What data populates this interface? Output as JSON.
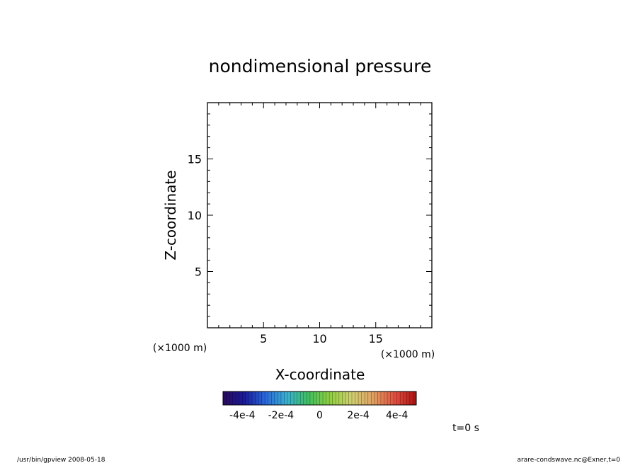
{
  "chart_data": {
    "type": "heatmap",
    "title": "nondimensional pressure",
    "xlabel": "X-coordinate",
    "ylabel": "Z-coordinate",
    "x_unit_label": "(×1000 m)",
    "y_unit_label": "(×1000 m)",
    "xlim": [
      0,
      20
    ],
    "ylim": [
      0,
      20
    ],
    "x_major_ticks": [
      5,
      10,
      15
    ],
    "y_major_ticks": [
      5,
      10,
      15
    ],
    "x_major_tick_labels": [
      "5",
      "10",
      "15"
    ],
    "y_major_tick_labels": [
      "5",
      "10",
      "15"
    ],
    "minor_tick_step": 1,
    "grid": false,
    "field_values": [],
    "colorbar": {
      "min": -0.0005,
      "max": 0.0005,
      "tick_values": [
        -0.0004,
        -0.0002,
        0,
        0.0002,
        0.0004
      ],
      "tick_labels": [
        "-4e-4",
        "-2e-4",
        "0",
        "2e-4",
        "4e-4"
      ],
      "stops": [
        "#2a0a5a",
        "#1a1a9a",
        "#2a6ae0",
        "#3ab0d0",
        "#40c060",
        "#90d040",
        "#d0d070",
        "#e0a060",
        "#e05040",
        "#b01010"
      ]
    }
  },
  "annotations": {
    "time_label": "t=0 s",
    "footer_left": "/usr/bin/gpview   2008-05-18",
    "footer_right": "arare-condswave.nc@Exner,t=0"
  }
}
